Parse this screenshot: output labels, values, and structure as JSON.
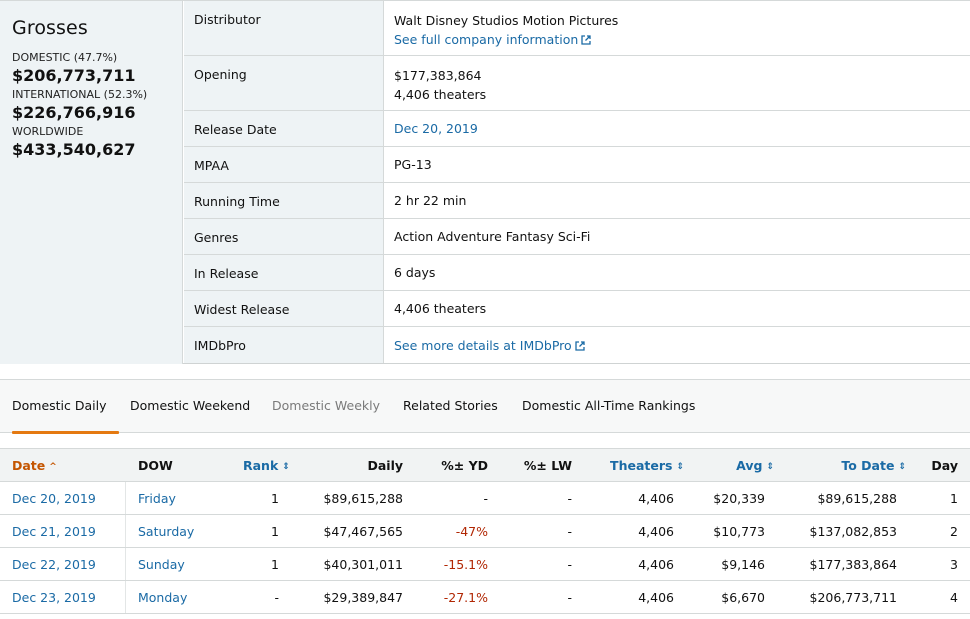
{
  "grosses": {
    "title": "Grosses",
    "domestic_label": "DOMESTIC (47.7%)",
    "domestic_amount": "$206,773,711",
    "international_label": "INTERNATIONAL (52.3%)",
    "international_amount": "$226,766,916",
    "worldwide_label": "WORLDWIDE",
    "worldwide_amount": "$433,540,627"
  },
  "details": {
    "distributor_label": "Distributor",
    "distributor_value": "Walt Disney Studios Motion Pictures",
    "distributor_link": "See full company information",
    "opening_label": "Opening",
    "opening_amount": "$177,383,864",
    "opening_theaters": "4,406 theaters",
    "release_label": "Release Date",
    "release_value": "Dec 20, 2019",
    "mpaa_label": "MPAA",
    "mpaa_value": "PG-13",
    "runtime_label": "Running Time",
    "runtime_value": "2 hr 22 min",
    "genres_label": "Genres",
    "genres_value": "Action Adventure Fantasy Sci-Fi",
    "inrelease_label": "In Release",
    "inrelease_value": "6 days",
    "widest_label": "Widest Release",
    "widest_value": "4,406 theaters",
    "imdbpro_label": "IMDbPro",
    "imdbpro_link": "See more details at IMDbPro"
  },
  "tabs": {
    "daily": "Domestic Daily",
    "weekend": "Domestic Weekend",
    "weekly": "Domestic Weekly",
    "stories": "Related Stories",
    "rankings": "Domestic All-Time Rankings"
  },
  "table": {
    "headers": {
      "date": "Date",
      "dow": "DOW",
      "rank": "Rank",
      "daily": "Daily",
      "yd": "%± YD",
      "lw": "%± LW",
      "theaters": "Theaters",
      "avg": "Avg",
      "todate": "To Date",
      "day": "Day"
    },
    "rows": [
      {
        "date": "Dec 20, 2019",
        "dow": "Friday",
        "rank": "1",
        "daily": "$89,615,288",
        "yd": "-",
        "lw": "-",
        "theaters": "4,406",
        "avg": "$20,339",
        "todate": "$89,615,288",
        "day": "1"
      },
      {
        "date": "Dec 21, 2019",
        "dow": "Saturday",
        "rank": "1",
        "daily": "$47,467,565",
        "yd": "-47%",
        "lw": "-",
        "theaters": "4,406",
        "avg": "$10,773",
        "todate": "$137,082,853",
        "day": "2"
      },
      {
        "date": "Dec 22, 2019",
        "dow": "Sunday",
        "rank": "1",
        "daily": "$40,301,011",
        "yd": "-15.1%",
        "lw": "-",
        "theaters": "4,406",
        "avg": "$9,146",
        "todate": "$177,383,864",
        "day": "3"
      },
      {
        "date": "Dec 23, 2019",
        "dow": "Monday",
        "rank": "-",
        "daily": "$29,389,847",
        "yd": "-27.1%",
        "lw": "-",
        "theaters": "4,406",
        "avg": "$6,670",
        "todate": "$206,773,711",
        "day": "4"
      }
    ]
  },
  "colors": {
    "link": "#1a6aa5",
    "active_tab": "#e47911",
    "negative": "#b12704",
    "sorted_header": "#c45500"
  }
}
